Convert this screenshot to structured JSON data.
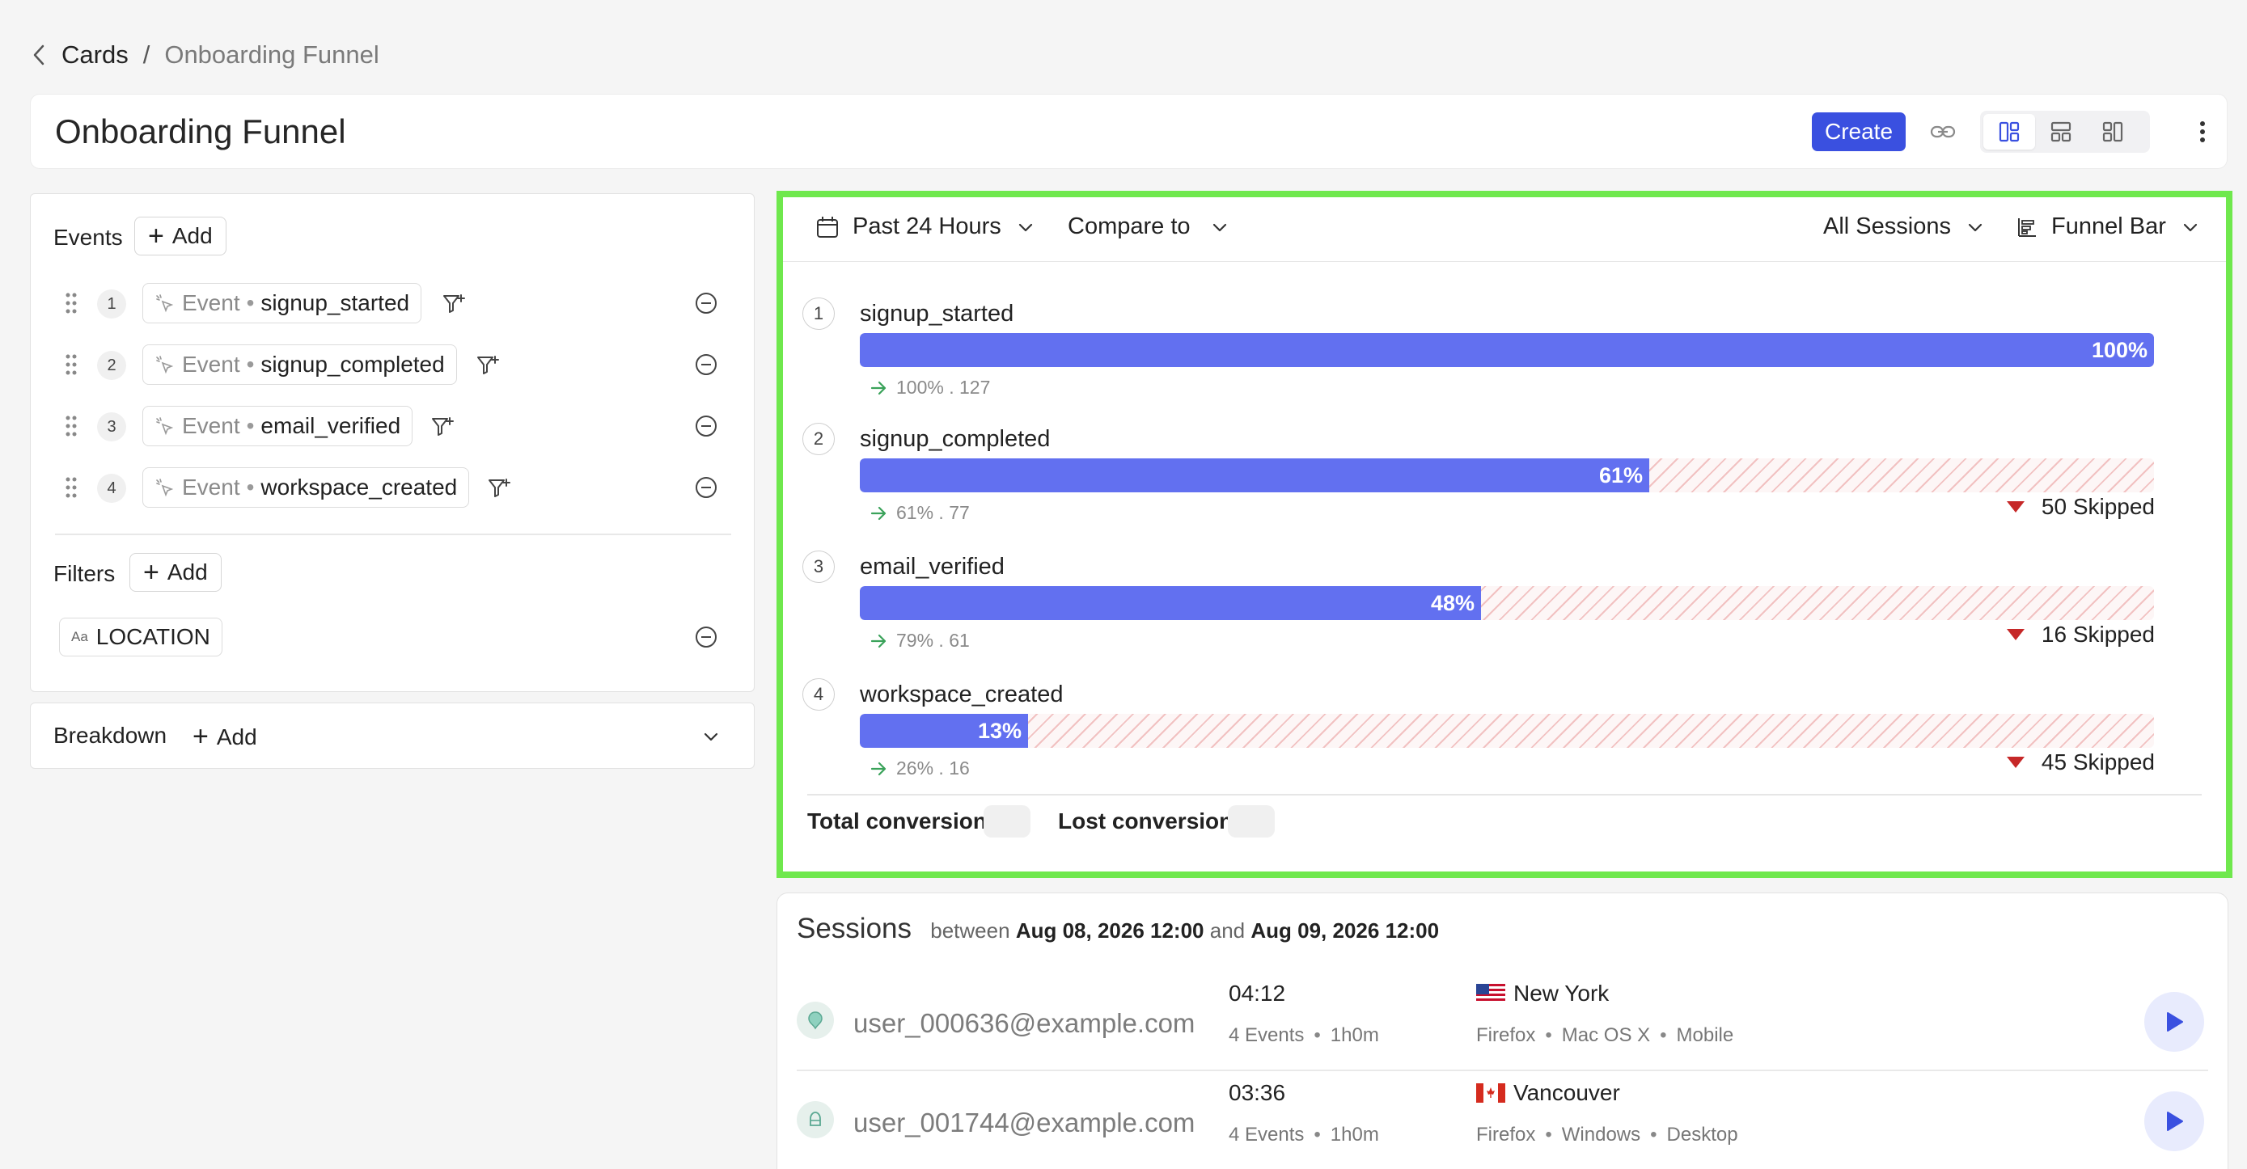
{
  "breadcrumb": {
    "parent": "Cards",
    "separator": "/",
    "current": "Onboarding Funnel"
  },
  "header": {
    "title": "Onboarding Funnel",
    "create_label": "Create",
    "accent_color": "#3a50e0",
    "icons": [
      "link-icon",
      "layout-two-column-icon",
      "layout-rows-icon",
      "layout-columns-icon",
      "more-vertical-icon"
    ]
  },
  "events_panel": {
    "events_label": "Events",
    "add_label": "Add",
    "events": [
      {
        "num": "1",
        "type": "Event",
        "name": "signup_started"
      },
      {
        "num": "2",
        "type": "Event",
        "name": "signup_completed"
      },
      {
        "num": "3",
        "type": "Event",
        "name": "email_verified"
      },
      {
        "num": "4",
        "type": "Event",
        "name": "workspace_created"
      }
    ],
    "filters_label": "Filters",
    "filter_add_label": "Add",
    "filter_chip_prefix": "Aa",
    "filter_chip": "LOCATION"
  },
  "breakdown": {
    "label": "Breakdown",
    "add_label": "Add"
  },
  "funnel": {
    "toolbar": {
      "range": "Past 24 Hours",
      "compare": "Compare to",
      "sessions": "All Sessions",
      "view": "Funnel Bar"
    },
    "bar_color": "#6270f0",
    "highlight_color": "#6fe84d",
    "steps": [
      {
        "num": "1",
        "name": "signup_started",
        "percent": 100,
        "percent_label": "100%",
        "conversion": "100% . 127",
        "skipped": ""
      },
      {
        "num": "2",
        "name": "signup_completed",
        "percent": 61,
        "percent_label": "61%",
        "conversion": "61% . 77",
        "skipped": "50 Skipped"
      },
      {
        "num": "3",
        "name": "email_verified",
        "percent": 48,
        "percent_label": "48%",
        "conversion": "79% . 61",
        "skipped": "16 Skipped"
      },
      {
        "num": "4",
        "name": "workspace_created",
        "percent": 13,
        "percent_label": "13%",
        "conversion": "26% . 16",
        "skipped": "45 Skipped"
      }
    ],
    "total_conversion_label": "Total conversion",
    "lost_conversion_label": "Lost conversion"
  },
  "sessions": {
    "title": "Sessions",
    "between": "between",
    "start": "Aug 08, 2026 12:00",
    "and": "and",
    "end": "Aug 09, 2026 12:00",
    "rows": [
      {
        "user": "user_000636@example.com",
        "time": "04:12",
        "events": "4 Events",
        "duration": "1h0m",
        "flag": "us-flag-icon",
        "city": "New York",
        "browser": "Firefox",
        "os": "Mac OS X",
        "device": "Mobile"
      },
      {
        "user": "user_001744@example.com",
        "time": "03:36",
        "events": "4 Events",
        "duration": "1h0m",
        "flag": "ca-flag-icon",
        "city": "Vancouver",
        "browser": "Firefox",
        "os": "Windows",
        "device": "Desktop"
      }
    ]
  }
}
